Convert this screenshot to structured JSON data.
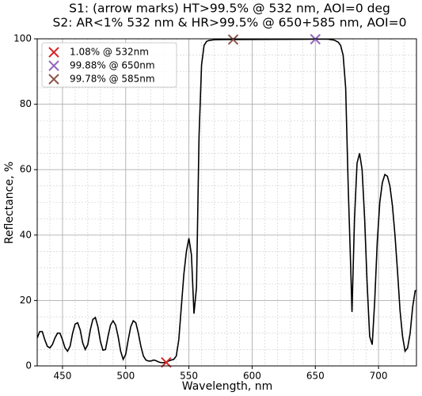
{
  "chart_data": {
    "type": "line",
    "title": "S1: (arrow marks) HT>99.5% @ 532 nm, AOI=0 deg",
    "subtitle": "S2: AR<1% 532 nm & HR>99.5% @ 650+585 nm, AOI=0",
    "xlabel": "Wavelength, nm",
    "ylabel": "Reflectance, %",
    "xlim": [
      430,
      730
    ],
    "ylim": [
      0,
      100
    ],
    "xticks": [
      450,
      500,
      550,
      600,
      650,
      700
    ],
    "yticks": [
      0,
      20,
      40,
      60,
      80,
      100
    ],
    "xminorticks": [
      430,
      440,
      450,
      460,
      470,
      480,
      490,
      500,
      510,
      520,
      530,
      540,
      550,
      560,
      570,
      580,
      590,
      600,
      610,
      620,
      630,
      640,
      650,
      660,
      670,
      680,
      690,
      700,
      710,
      720,
      730
    ],
    "yminorticks": [
      0,
      5,
      10,
      15,
      20,
      25,
      30,
      35,
      40,
      45,
      50,
      55,
      60,
      65,
      70,
      75,
      80,
      85,
      90,
      95,
      100
    ],
    "grid": true,
    "legend": "upper left",
    "color": "#000000",
    "x": [
      430,
      432,
      434,
      436,
      438,
      440,
      442,
      444,
      446,
      448,
      450,
      452,
      454,
      456,
      458,
      460,
      462,
      464,
      466,
      468,
      470,
      472,
      474,
      476,
      478,
      480,
      482,
      484,
      486,
      488,
      490,
      492,
      494,
      496,
      498,
      500,
      502,
      504,
      506,
      508,
      510,
      512,
      514,
      516,
      518,
      520,
      522,
      524,
      526,
      528,
      530,
      532,
      534,
      536,
      538,
      540,
      542,
      544,
      546,
      548,
      550,
      552,
      554,
      556,
      558,
      560,
      562,
      564,
      566,
      570,
      580,
      585,
      600,
      650,
      660,
      665,
      668,
      670,
      672,
      674,
      676,
      678,
      679,
      681,
      683,
      685,
      687,
      689,
      691,
      693,
      695,
      697,
      699,
      701,
      703,
      705,
      707,
      709,
      711,
      713,
      715,
      717,
      719,
      721,
      723,
      725,
      727,
      729,
      730
    ],
    "values": [
      8.5,
      10.5,
      10.5,
      8,
      6,
      5.5,
      6.5,
      8.5,
      10,
      10,
      8,
      5.5,
      4.5,
      6,
      10,
      12.8,
      13.2,
      11,
      7,
      5,
      6.5,
      11,
      14.2,
      14.8,
      12,
      7.5,
      4.8,
      5,
      9,
      12.5,
      13.8,
      12.5,
      9,
      4.5,
      2,
      3.5,
      8,
      12,
      13.8,
      13.2,
      10,
      6,
      3,
      1.8,
      1.5,
      1.5,
      1.8,
      1.6,
      1.2,
      1,
      1,
      1.08,
      1.5,
      1.8,
      2,
      3,
      8,
      18,
      28,
      35,
      39,
      34,
      16,
      24,
      70,
      92,
      98,
      99.2,
      99.5,
      99.7,
      99.8,
      99.78,
      99.8,
      99.88,
      99.9,
      99.6,
      99,
      98,
      95,
      85,
      55,
      30,
      16.5,
      45,
      62,
      65,
      60,
      45,
      25,
      9,
      6.5,
      20,
      38,
      50,
      56,
      58.5,
      58,
      55,
      49,
      40,
      29,
      17,
      9,
      4.5,
      5.5,
      10,
      18,
      23,
      23
    ],
    "markers": [
      {
        "label": "1.08% @ 532nm",
        "x": 532,
        "y": 1.08,
        "color": "#d62728"
      },
      {
        "label": "99.88% @ 650nm",
        "x": 650,
        "y": 99.88,
        "color": "#9467bd"
      },
      {
        "label": "99.78% @ 585nm",
        "x": 585,
        "y": 99.78,
        "color": "#8c564b"
      }
    ]
  }
}
